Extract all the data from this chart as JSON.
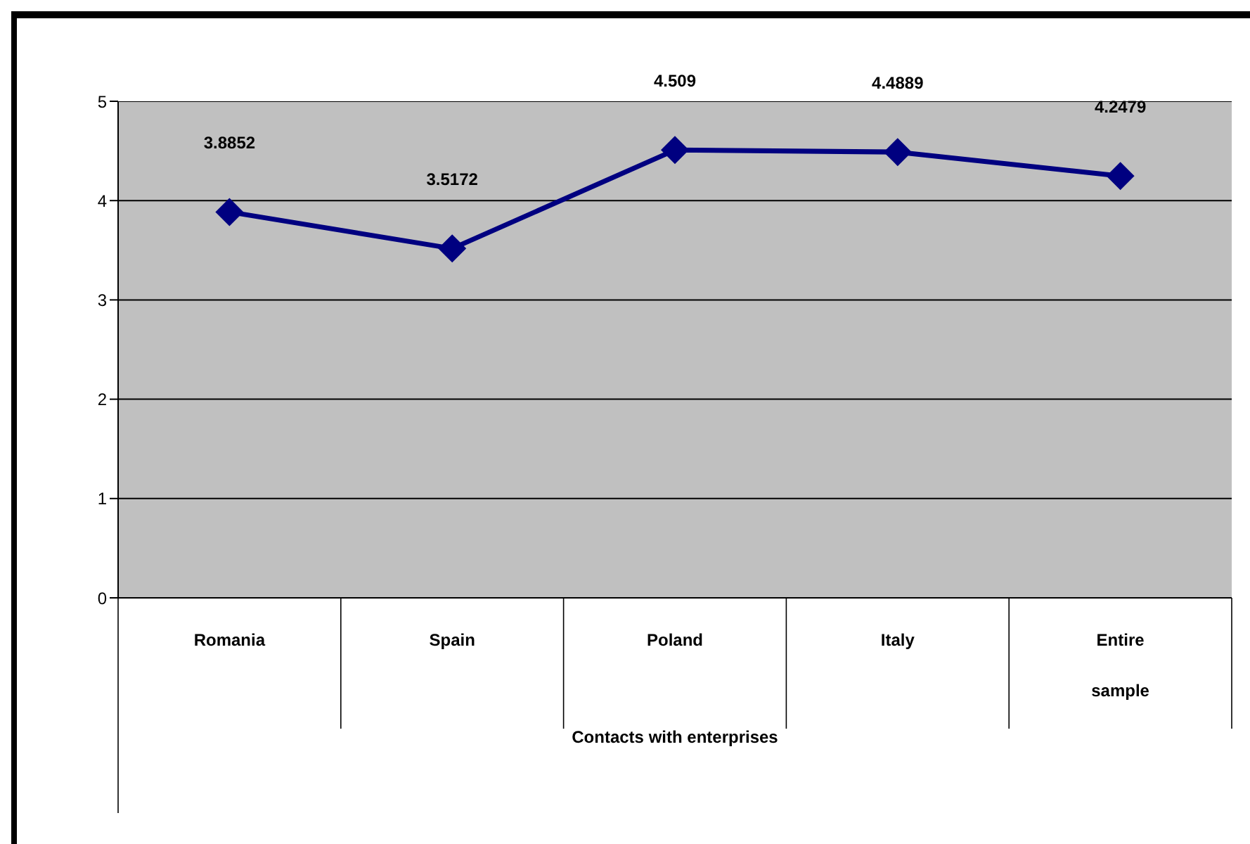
{
  "chart_data": {
    "type": "line",
    "xlabel": "Contacts with enterprises",
    "categories": [
      "Romania",
      "Spain",
      "Poland",
      "Italy",
      "Entire sample"
    ],
    "series": [
      {
        "color": "#000080",
        "values": [
          3.8852,
          3.5172,
          4.509,
          4.4889,
          4.2479
        ]
      }
    ],
    "ylim": [
      0,
      5
    ],
    "yticks": [
      0,
      1,
      2,
      3,
      4,
      5
    ],
    "grid": "y",
    "marker": "diamond",
    "line_style": "solid",
    "data_labels": true
  }
}
